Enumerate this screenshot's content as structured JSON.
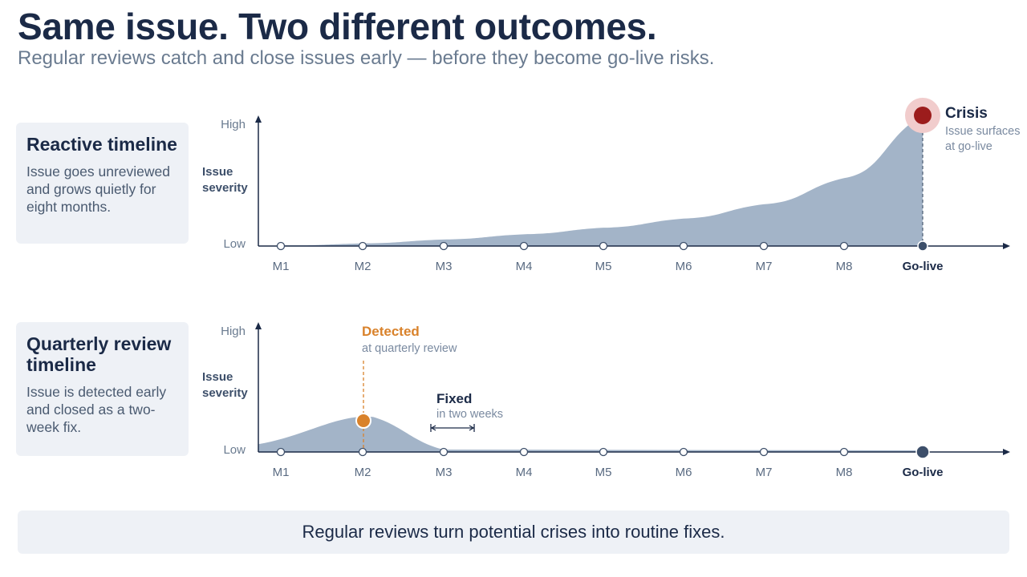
{
  "header": {
    "title": "Same issue. Two different outcomes.",
    "subtitle": "Regular reviews catch and close issues early — before they become go-live risks."
  },
  "cards": {
    "reactive": {
      "title": "Reactive timeline",
      "body": "Issue goes unreviewed and grows quietly for eight months."
    },
    "quarterly": {
      "title": "Quarterly review timeline",
      "body": "Issue is detected early and closed as a two-week fix."
    }
  },
  "chart_data": [
    {
      "type": "area",
      "ylabel": "Issue severity",
      "y_ticks": [
        "High",
        "Low"
      ],
      "categories": [
        "M1",
        "M2",
        "M3",
        "M4",
        "M5",
        "M6",
        "M7",
        "M8",
        "Go-live"
      ],
      "values": [
        0.0,
        0.02,
        0.05,
        0.09,
        0.14,
        0.21,
        0.32,
        0.52,
        1.0
      ],
      "annotation": {
        "title": "Crisis",
        "text": "Issue surfaces at go-live",
        "at": "Go-live"
      },
      "colors": {
        "area": "#a3b4c8",
        "axis": "#1b2a47",
        "marker": "#9c1c1c"
      }
    },
    {
      "type": "area",
      "ylabel": "Issue severity",
      "y_ticks": [
        "High",
        "Low"
      ],
      "categories": [
        "M1",
        "M2",
        "M3",
        "M4",
        "M5",
        "M6",
        "M7",
        "M8",
        "Go-live"
      ],
      "values": [
        0.1,
        0.27,
        0.0,
        0.0,
        0.0,
        0.0,
        0.0,
        0.0,
        0.0
      ],
      "annotations": [
        {
          "title": "Detected",
          "text": "at quarterly review",
          "at": "M2",
          "color": "#d9822b"
        },
        {
          "title": "Fixed",
          "text": "in two weeks",
          "at": "M3"
        }
      ],
      "colors": {
        "area": "#a3b4c8",
        "axis": "#1b2a47",
        "marker": "#d9822b"
      }
    }
  ],
  "footer": {
    "text": "Regular reviews turn potential crises into routine fixes."
  }
}
